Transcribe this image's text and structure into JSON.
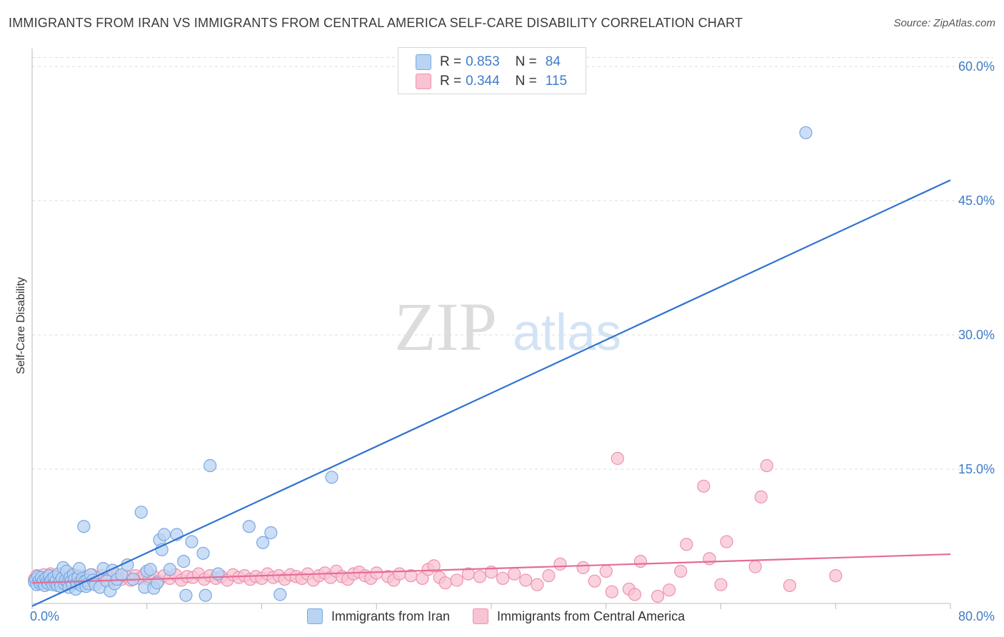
{
  "header": {
    "title": "IMMIGRANTS FROM IRAN VS IMMIGRANTS FROM CENTRAL AMERICA SELF-CARE DISABILITY CORRELATION CHART",
    "source": "Source: ZipAtlas.com"
  },
  "watermark": {
    "zip": "ZIP",
    "atlas": "atlas"
  },
  "colors": {
    "iran_fill": "#b9d3f3",
    "iran_stroke": "#7aa8e0",
    "iran_line": "#2f72d0",
    "ca_fill": "#f8c3d2",
    "ca_stroke": "#ee92ae",
    "ca_line": "#e46c95",
    "grid": "#dddddd",
    "tick_text": "#3e7cc8"
  },
  "legend": {
    "iran": {
      "r_label": "R =",
      "r_value": "0.853",
      "n_label": "N =",
      "n_value": "84"
    },
    "central_america": {
      "r_label": "R =",
      "r_value": "0.344",
      "n_label": "N =",
      "n_value": "115"
    }
  },
  "chart_data": {
    "type": "scatter",
    "title": "IMMIGRANTS FROM IRAN VS IMMIGRANTS FROM CENTRAL AMERICA SELF-CARE DISABILITY CORRELATION CHART",
    "xlabel": "",
    "ylabel": "Self-Care Disability",
    "xlim": [
      0,
      80
    ],
    "ylim": [
      0,
      62
    ],
    "x_tick_labels": [
      "0.0%",
      "80.0%"
    ],
    "y_ticks": [
      15,
      30,
      45,
      60
    ],
    "y_tick_labels": [
      "15.0%",
      "30.0%",
      "45.0%",
      "60.0%"
    ],
    "grid": true,
    "series": [
      {
        "name": "Immigrants from Iran",
        "r": 0.853,
        "n": 84,
        "trendline": {
          "x": [
            0,
            80
          ],
          "y": [
            -0.3,
            47.3
          ]
        },
        "points": [
          [
            0.2,
            2.4
          ],
          [
            0.3,
            2.7
          ],
          [
            0.4,
            2.1
          ],
          [
            0.5,
            3.0
          ],
          [
            0.6,
            2.5
          ],
          [
            0.7,
            2.2
          ],
          [
            0.8,
            2.9
          ],
          [
            0.9,
            2.3
          ],
          [
            1.0,
            2.6
          ],
          [
            1.1,
            2.0
          ],
          [
            1.2,
            2.8
          ],
          [
            1.3,
            2.4
          ],
          [
            1.4,
            2.2
          ],
          [
            1.5,
            3.1
          ],
          [
            1.6,
            2.5
          ],
          [
            1.7,
            2.7
          ],
          [
            1.8,
            2.1
          ],
          [
            1.9,
            2.9
          ],
          [
            2.0,
            2.3
          ],
          [
            2.1,
            2.6
          ],
          [
            2.2,
            2.0
          ],
          [
            2.3,
            3.3
          ],
          [
            2.4,
            2.4
          ],
          [
            2.5,
            1.9
          ],
          [
            2.6,
            2.8
          ],
          [
            2.7,
            4.0
          ],
          [
            2.8,
            2.2
          ],
          [
            2.9,
            2.6
          ],
          [
            3.0,
            3.6
          ],
          [
            3.1,
            2.3
          ],
          [
            3.2,
            1.8
          ],
          [
            3.3,
            2.9
          ],
          [
            3.4,
            2.5
          ],
          [
            3.5,
            2.1
          ],
          [
            3.6,
            3.2
          ],
          [
            3.7,
            2.7
          ],
          [
            3.8,
            1.6
          ],
          [
            3.9,
            2.3
          ],
          [
            4.0,
            2.9
          ],
          [
            4.1,
            3.9
          ],
          [
            4.2,
            2.4
          ],
          [
            4.3,
            2.0
          ],
          [
            4.4,
            2.8
          ],
          [
            4.5,
            8.6
          ],
          [
            4.6,
            2.5
          ],
          [
            4.7,
            1.9
          ],
          [
            4.8,
            2.6
          ],
          [
            4.9,
            2.2
          ],
          [
            5.1,
            3.2
          ],
          [
            5.3,
            2.6
          ],
          [
            5.5,
            2.1
          ],
          [
            5.9,
            1.8
          ],
          [
            6.2,
            3.9
          ],
          [
            6.5,
            2.5
          ],
          [
            6.8,
            1.4
          ],
          [
            7.0,
            3.7
          ],
          [
            7.2,
            2.2
          ],
          [
            7.4,
            2.7
          ],
          [
            7.8,
            3.2
          ],
          [
            8.3,
            4.3
          ],
          [
            8.8,
            2.7
          ],
          [
            9.5,
            10.2
          ],
          [
            9.8,
            1.8
          ],
          [
            10.0,
            3.6
          ],
          [
            10.3,
            3.8
          ],
          [
            10.6,
            1.7
          ],
          [
            10.9,
            2.3
          ],
          [
            11.1,
            7.1
          ],
          [
            11.3,
            6.0
          ],
          [
            11.5,
            7.7
          ],
          [
            12.0,
            3.8
          ],
          [
            12.6,
            7.7
          ],
          [
            13.2,
            4.7
          ],
          [
            13.4,
            0.9
          ],
          [
            13.9,
            6.9
          ],
          [
            14.9,
            5.6
          ],
          [
            15.1,
            0.9
          ],
          [
            15.5,
            15.4
          ],
          [
            16.2,
            3.3
          ],
          [
            18.9,
            8.6
          ],
          [
            20.1,
            6.8
          ],
          [
            20.8,
            7.9
          ],
          [
            21.6,
            1.0
          ],
          [
            26.1,
            14.1
          ],
          [
            67.4,
            52.6
          ]
        ]
      },
      {
        "name": "Immigrants from Central America",
        "r": 0.344,
        "n": 115,
        "trendline": {
          "x": [
            0,
            80
          ],
          "y": [
            2.3,
            5.5
          ]
        },
        "points": [
          [
            0.2,
            2.7
          ],
          [
            0.4,
            3.1
          ],
          [
            0.6,
            2.4
          ],
          [
            0.8,
            2.9
          ],
          [
            1.0,
            3.2
          ],
          [
            1.2,
            2.5
          ],
          [
            1.4,
            2.8
          ],
          [
            1.6,
            3.3
          ],
          [
            1.8,
            2.6
          ],
          [
            2.0,
            3.0
          ],
          [
            2.2,
            2.3
          ],
          [
            2.4,
            2.9
          ],
          [
            2.6,
            3.2
          ],
          [
            2.8,
            2.5
          ],
          [
            3.0,
            3.0
          ],
          [
            3.2,
            2.7
          ],
          [
            3.4,
            3.3
          ],
          [
            3.6,
            2.4
          ],
          [
            3.8,
            2.9
          ],
          [
            4.0,
            3.1
          ],
          [
            4.3,
            2.6
          ],
          [
            4.6,
            3.0
          ],
          [
            4.9,
            2.7
          ],
          [
            5.2,
            3.2
          ],
          [
            5.5,
            2.5
          ],
          [
            5.8,
            2.9
          ],
          [
            6.1,
            3.1
          ],
          [
            6.4,
            2.6
          ],
          [
            6.7,
            3.0
          ],
          [
            7.0,
            2.8
          ],
          [
            7.4,
            3.2
          ],
          [
            7.8,
            2.7
          ],
          [
            8.2,
            3.0
          ],
          [
            8.6,
            2.6
          ],
          [
            9.0,
            3.1
          ],
          [
            9.4,
            2.8
          ],
          [
            9.8,
            3.3
          ],
          [
            10.2,
            2.7
          ],
          [
            10.6,
            3.0
          ],
          [
            11.0,
            2.5
          ],
          [
            11.5,
            3.1
          ],
          [
            12.0,
            2.8
          ],
          [
            12.5,
            3.2
          ],
          [
            13.0,
            2.6
          ],
          [
            13.5,
            3.0
          ],
          [
            14.0,
            2.9
          ],
          [
            14.5,
            3.3
          ],
          [
            15.0,
            2.7
          ],
          [
            15.5,
            3.1
          ],
          [
            16.0,
            2.8
          ],
          [
            16.5,
            3.0
          ],
          [
            17.0,
            2.6
          ],
          [
            17.5,
            3.2
          ],
          [
            18.0,
            2.9
          ],
          [
            18.5,
            3.1
          ],
          [
            19.0,
            2.7
          ],
          [
            19.5,
            3.0
          ],
          [
            20.0,
            2.8
          ],
          [
            20.5,
            3.3
          ],
          [
            21.0,
            2.9
          ],
          [
            21.5,
            3.1
          ],
          [
            22.0,
            2.7
          ],
          [
            22.5,
            3.2
          ],
          [
            23.0,
            3.0
          ],
          [
            23.5,
            2.8
          ],
          [
            24.0,
            3.3
          ],
          [
            24.5,
            2.6
          ],
          [
            25.0,
            3.1
          ],
          [
            25.5,
            3.4
          ],
          [
            26.0,
            2.9
          ],
          [
            26.5,
            3.6
          ],
          [
            27.0,
            3.0
          ],
          [
            27.5,
            2.7
          ],
          [
            28.0,
            3.3
          ],
          [
            28.5,
            3.5
          ],
          [
            29.0,
            3.1
          ],
          [
            29.5,
            2.8
          ],
          [
            30.0,
            3.4
          ],
          [
            31.0,
            3.0
          ],
          [
            31.5,
            2.6
          ],
          [
            32.0,
            3.3
          ],
          [
            33.0,
            3.1
          ],
          [
            34.0,
            2.8
          ],
          [
            34.5,
            3.8
          ],
          [
            35.0,
            4.2
          ],
          [
            35.5,
            2.9
          ],
          [
            36.0,
            2.3
          ],
          [
            37.0,
            2.6
          ],
          [
            38.0,
            3.3
          ],
          [
            39.0,
            3.0
          ],
          [
            40.0,
            3.5
          ],
          [
            41.0,
            2.8
          ],
          [
            42.0,
            3.3
          ],
          [
            43.0,
            2.6
          ],
          [
            44.0,
            2.1
          ],
          [
            45.0,
            3.1
          ],
          [
            46.0,
            4.4
          ],
          [
            48.0,
            4.0
          ],
          [
            49.0,
            2.5
          ],
          [
            50.0,
            3.6
          ],
          [
            50.5,
            1.3
          ],
          [
            51.0,
            16.2
          ],
          [
            52.0,
            1.6
          ],
          [
            52.5,
            1.0
          ],
          [
            53.0,
            4.7
          ],
          [
            54.5,
            0.8
          ],
          [
            55.5,
            1.5
          ],
          [
            56.5,
            3.6
          ],
          [
            57.0,
            6.6
          ],
          [
            58.5,
            13.1
          ],
          [
            59.0,
            5.0
          ],
          [
            60.0,
            2.1
          ],
          [
            60.5,
            6.9
          ],
          [
            63.0,
            4.1
          ],
          [
            63.5,
            11.9
          ],
          [
            64.0,
            15.4
          ],
          [
            66.0,
            2.0
          ],
          [
            70.0,
            3.1
          ]
        ]
      }
    ]
  },
  "bottom_legend": {
    "iran_label": "Immigrants from Iran",
    "ca_label": "Immigrants from Central America"
  }
}
